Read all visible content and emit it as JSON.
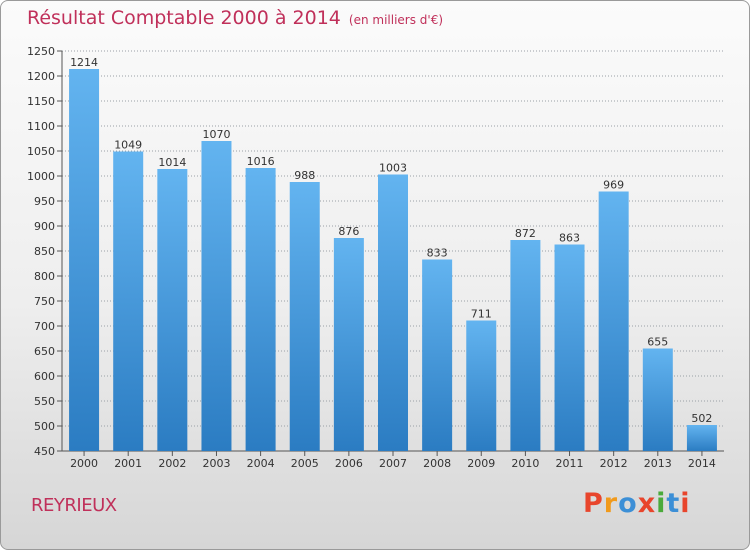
{
  "title": {
    "main": "Résultat Comptable 2000 à 2014",
    "unit": "(en milliers d'€)"
  },
  "commune": "REYRIEUX",
  "brand": {
    "text": "Proxiti",
    "colors": [
      "#e8452c",
      "#f19a1b",
      "#3c8fd6",
      "#e8452c",
      "#4aaa3b",
      "#3c8fd6",
      "#e8452c"
    ]
  },
  "colors": {
    "title": "#c0305a",
    "bar_light": "#5fb0ee",
    "bar_dark": "#2d7fc4",
    "grid": "#9aa0a6"
  },
  "chart_data": {
    "type": "bar",
    "title": "Résultat Comptable 2000 à 2014",
    "ylabel": "en milliers d'€",
    "xlabel": "",
    "categories": [
      "2000",
      "2001",
      "2002",
      "2003",
      "2004",
      "2005",
      "2006",
      "2007",
      "2008",
      "2009",
      "2010",
      "2011",
      "2012",
      "2013",
      "2014"
    ],
    "values": [
      1214,
      1049,
      1014,
      1070,
      1016,
      988,
      876,
      1003,
      833,
      711,
      872,
      863,
      969,
      655,
      502
    ],
    "ylim": [
      450,
      1250
    ],
    "ytick_step": 50,
    "grid": true
  }
}
